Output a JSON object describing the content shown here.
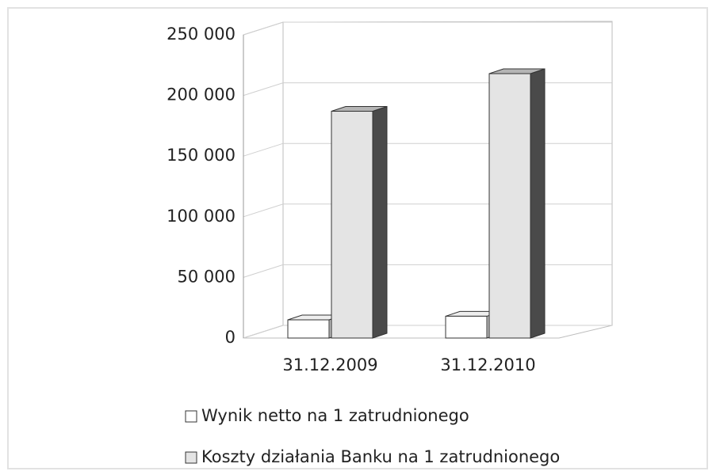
{
  "chart_data": {
    "type": "bar3d",
    "categories": [
      "31.12.2009",
      "31.12.2010"
    ],
    "series": [
      {
        "name": "Wynik netto na 1 zatrudnionego",
        "color": "#ffffff",
        "values": [
          15000,
          18000
        ]
      },
      {
        "name": "Koszty działania Banku na 1 zatrudnionego",
        "color": "#e4e4e4",
        "values": [
          187000,
          218000
        ]
      }
    ],
    "ylim": [
      0,
      250000
    ],
    "yticks": [
      0,
      {
        "value": 50000,
        "label": "50 000"
      },
      {
        "value": 100000,
        "label": "100 000"
      },
      {
        "value": 150000,
        "label": "150 000"
      },
      {
        "value": 200000,
        "label": "200 000"
      },
      {
        "value": 250000,
        "label": "250 000"
      }
    ],
    "grid": true
  }
}
